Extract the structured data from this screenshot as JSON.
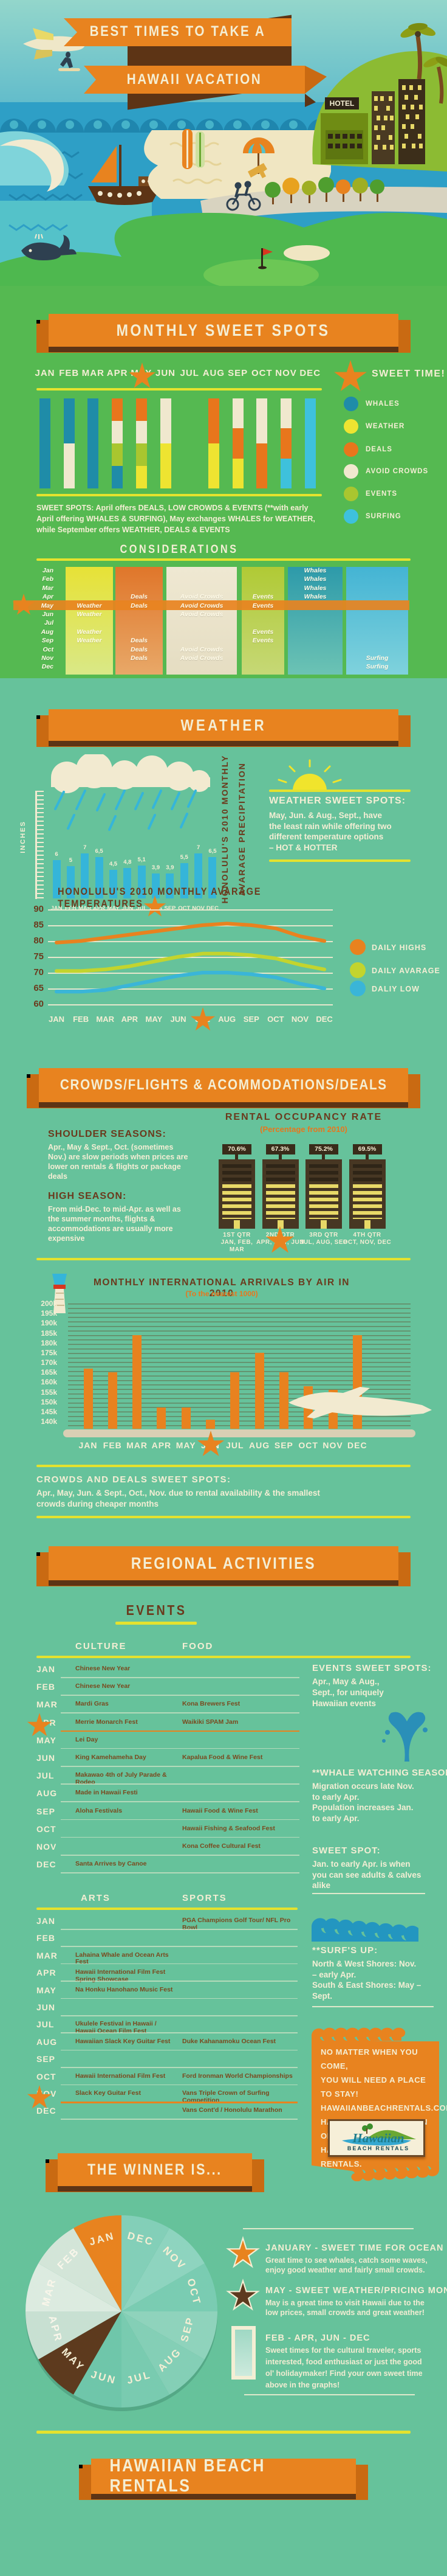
{
  "hero": {
    "title_line1": "BEST TIMES TO TAKE A",
    "title_line2": "HAWAII VACATION",
    "hotel_sign": "HOTEL"
  },
  "months_upper": [
    "JAN",
    "FEB",
    "MAR",
    "APR",
    "MAY",
    "JUN",
    "JUL",
    "AUG",
    "SEP",
    "OCT",
    "NOV",
    "DEC"
  ],
  "months_title": [
    "Jan",
    "Feb",
    "Mar",
    "Apr",
    "May",
    "Jun",
    "Jul",
    "Aug",
    "Sep",
    "Oct",
    "Nov",
    "Dec"
  ],
  "sweet_spots": {
    "ribbon": "MONTHLY SWEET SPOTS",
    "sweet_time": "SWEET TIME!",
    "starred_month": "MAY",
    "legend": [
      {
        "key": "whales",
        "label": "WHALES",
        "color": "#1f8ca8"
      },
      {
        "key": "weather",
        "label": "WEATHER",
        "color": "#eee431"
      },
      {
        "key": "deals",
        "label": "DEALS",
        "color": "#e8761c"
      },
      {
        "key": "avoid",
        "label": "AVOID CROWDS",
        "color": "#f0e8ce"
      },
      {
        "key": "events",
        "label": "EVENTS",
        "color": "#a9c62f"
      },
      {
        "key": "surfing",
        "label": "SURFING",
        "color": "#3ec1dc"
      }
    ],
    "note": "SWEET SPOTS: April offers DEALS, LOW CROWDS & EVENTS (**with early April offering WHALES & SURFING), May exchanges WHALES for WEATHER, while September offers WEATHER, DEALS & EVENTS"
  },
  "considerations": {
    "heading": "CONSIDERATIONS",
    "starred_month": "May"
  },
  "weather": {
    "ribbon": "WEATHER",
    "precip_ylabel": "INCHES",
    "precip_title_line1": "HONOLULU'S 2010 MONTHLY",
    "precip_title_line2": "AVARAGE PRECIPITATION",
    "sweet_heading": "WEATHER SWEET SPOTS:",
    "sweet_lines": [
      "May, Jun. & Aug., Sept., have",
      "the least rain while offering two",
      "different temperature options",
      "– HOT & HOTTER"
    ],
    "temps_title": "HONOLULU'S 2010 MONTHLY AVARAGE TEMPERATURES"
  },
  "crowds": {
    "ribbon": "CROWDS/FLIGHTS & ACOMMODATIONS/DEALS",
    "occupancy_title": "RENTAL OCCUPANCY RATE",
    "occupancy_sub": "(Percentage from 2010)",
    "shoulder_heading": "SHOULDER SEASONS:",
    "shoulder_text": "Apr., May & Sept., Oct. (sometimes Nov.) are slow periods when prices are lower on rentals & flights or package deals",
    "high_heading": "HIGH SEASON:",
    "high_text": "From mid-Dec. to mid-Apr. as well as the summer months, flights & accommodations are usually more expensive",
    "arrivals_title": "MONTHLY INTERNATIONAL ARRIVALS BY AIR IN 2010",
    "arrivals_sub": "(To the nearest 1000)",
    "sweet_heading": "CROWDS AND DEALS SWEET SPOTS:",
    "sweet_text": "Apr., May, Jun. & Sept., Oct., Nov. due to rental availability & the smallest crowds during cheaper months"
  },
  "regional": {
    "ribbon": "REGIONAL ACTIVITIES",
    "events_heading": "EVENTS",
    "culture_header": "CULTURE",
    "food_header": "FOOD",
    "arts_header": "ARTS",
    "sports_header": "SPORTS",
    "events_sweet_heading": "EVENTS SWEET SPOTS:",
    "events_sweet_lines": [
      "Apr., May & Aug.,",
      "Sept., for uniquely",
      "Hawaiian events"
    ],
    "whale_heading": "**WHALE WATCHING SEASON:",
    "whale_lines": [
      "Migration occurs late Nov.",
      "to early Apr.",
      "Population increases Jan.",
      "to early Apr."
    ],
    "whale_sweet_heading": "SWEET SPOT:",
    "whale_sweet_lines": [
      "Jan. to early Apr. is when",
      "you can see adults & calves",
      "alike"
    ],
    "surf_heading": "**SURF'S UP:",
    "surf_lines": [
      "North & West Shores: Nov.",
      "– early Apr.",
      "South & East Shores: May –",
      "Sept."
    ],
    "cta_lines": [
      "NO MATTER WHEN YOU COME,",
      "YOU WILL NEED A PLACE TO STAY!",
      "HAWAIIANBEACHRENTALS.COM",
      "HAS A GREAT SELECTION OF",
      "HAWAII VACATION RENTALS."
    ],
    "logo_script": "Hawaiian",
    "logo_sub": "BEACH RENTALS"
  },
  "winner": {
    "ribbon": "THE WINNER IS...",
    "blocks": [
      {
        "icon": "star",
        "icon_color": "#e8831f",
        "heading": "JANUARY - SWEET TIME FOR OCEAN LOVERS!",
        "lines": [
          "Great time to see whales, catch some waves,",
          "enjoy good weather and fairly small crowds."
        ]
      },
      {
        "icon": "star",
        "icon_color": "#5d3a1e",
        "heading": "MAY - SWEET WEATHER/PRICING MONTH!",
        "lines": [
          "May is a great time to visit Hawaii due to the",
          "low prices, small crowds and great weather!"
        ]
      },
      {
        "icon": "rect",
        "icon_color": "#bfe3d2",
        "heading": "FEB - APR, JUN - DEC",
        "lines": [
          "Sweet times for the cultural traveler, sports",
          "interested, food enthusiast or just the good",
          "ol' holidaymaker! Find your own sweet time",
          "above in the graphs!"
        ]
      }
    ]
  },
  "footer_ribbon": "HAWAIIAN BEACH RENTALS",
  "chart_data": [
    {
      "id": "monthly_sweet_spots",
      "type": "bar",
      "stacked": true,
      "title": "MONTHLY SWEET SPOTS",
      "categories": [
        "JAN",
        "FEB",
        "MAR",
        "APR",
        "MAY",
        "JUN",
        "JUL",
        "AUG",
        "SEP",
        "OCT",
        "NOV",
        "DEC"
      ],
      "stacks": [
        [
          "whales"
        ],
        [
          "whales",
          "avoid"
        ],
        [
          "whales"
        ],
        [
          "deals",
          "avoid",
          "events",
          "whales"
        ],
        [
          "deals",
          "avoid",
          "events",
          "weather"
        ],
        [
          "avoid",
          "weather"
        ],
        [],
        [
          "deals",
          "weather"
        ],
        [
          "avoid",
          "deals",
          "weather"
        ],
        [
          "avoid",
          "deals"
        ],
        [
          "avoid",
          "deals",
          "surfing"
        ],
        [
          "surfing"
        ]
      ],
      "legend": [
        "WHALES",
        "WEATHER",
        "DEALS",
        "AVOID CROWDS",
        "EVENTS",
        "SURFING"
      ],
      "starred": "MAY"
    },
    {
      "id": "considerations",
      "type": "table",
      "columns": [
        {
          "key": "weather",
          "label": "Weather"
        },
        {
          "key": "deals",
          "label": "Deals"
        },
        {
          "key": "avoid",
          "label": "Avoid Crowds"
        },
        {
          "key": "events",
          "label": "Events"
        },
        {
          "key": "whales",
          "label": "Whales"
        },
        {
          "key": "surfing",
          "label": "Surfing"
        }
      ],
      "rows": [
        {
          "month": "Jan",
          "cells": {
            "whales": "Whales"
          }
        },
        {
          "month": "Feb",
          "cells": {
            "whales": "Whales"
          }
        },
        {
          "month": "Mar",
          "cells": {
            "whales": "Whales"
          }
        },
        {
          "month": "Apr",
          "cells": {
            "deals": "Deals",
            "avoid": "Avoid Crowds",
            "events": "Events",
            "whales": "Whales"
          }
        },
        {
          "month": "May",
          "cells": {
            "weather": "Weather",
            "deals": "Deals",
            "avoid": "Avoid Crowds",
            "events": "Events"
          },
          "starred": true
        },
        {
          "month": "Jun",
          "cells": {
            "weather": "Weather",
            "avoid": "Avoid Crowds"
          }
        },
        {
          "month": "Jul",
          "cells": {}
        },
        {
          "month": "Aug",
          "cells": {
            "weather": "Weather",
            "events": "Events"
          }
        },
        {
          "month": "Sep",
          "cells": {
            "weather": "Weather",
            "deals": "Deals",
            "events": "Events"
          }
        },
        {
          "month": "Oct",
          "cells": {
            "deals": "Deals",
            "avoid": "Avoid Crowds"
          }
        },
        {
          "month": "Nov",
          "cells": {
            "deals": "Deals",
            "avoid": "Avoid Crowds",
            "surfing": "Surfing"
          }
        },
        {
          "month": "Dec",
          "cells": {
            "surfing": "Surfing"
          }
        }
      ]
    },
    {
      "id": "precipitation",
      "type": "bar",
      "title": "HONOLULU'S 2010 MONTHLY AVARAGE PRECIPITATION",
      "ylabel": "INCHES",
      "categories": [
        "JAN",
        "FEB",
        "MAR",
        "APR",
        "MAY",
        "JUN",
        "JUL",
        "AUG",
        "SEP",
        "OCT",
        "NOV",
        "DEC"
      ],
      "values": [
        6,
        5,
        7,
        6.5,
        4.5,
        4.8,
        5.1,
        3.9,
        3.9,
        5.5,
        7,
        6.5
      ],
      "starred": "AUG"
    },
    {
      "id": "temperatures",
      "type": "line",
      "title": "HONOLULU'S 2010 MONTHLY AVARAGE TEMPERATURES",
      "categories": [
        "JAN",
        "FEB",
        "MAR",
        "APR",
        "MAY",
        "JUN",
        "JUL",
        "AUG",
        "SEP",
        "OCT",
        "NOV",
        "DEC"
      ],
      "series": [
        {
          "name": "DAILY HIGHS",
          "color": "#e8821f",
          "values": [
            79.5,
            80,
            81,
            82,
            83,
            84,
            85,
            85.5,
            85,
            84,
            81.5,
            80
          ]
        },
        {
          "name": "DAILY AVARAGE",
          "color": "#c3d42e",
          "values": [
            70.5,
            70.5,
            71,
            72,
            73.5,
            75,
            76,
            76,
            75.5,
            74.5,
            72.5,
            71
          ]
        },
        {
          "name": "DALIY LOW",
          "color": "#3ab5d8",
          "values": [
            64,
            64,
            64.5,
            66,
            67.5,
            69,
            70,
            70,
            69.5,
            68.5,
            66.5,
            65
          ]
        }
      ],
      "ylim": [
        60,
        90
      ],
      "yticks": [
        90,
        85,
        80,
        75,
        70,
        65,
        60
      ],
      "grid": true,
      "legend_position": "right",
      "starred": "JUL"
    },
    {
      "id": "occupancy",
      "type": "bar",
      "title": "RENTAL OCCUPANCY RATE",
      "subtitle": "(Percentage from 2010)",
      "categories": [
        "1ST QTR",
        "2ND QTR",
        "3RD QTR",
        "4TH QTR"
      ],
      "category_months": [
        "JAN, FEB, MAR",
        "APR, MAY, JUN",
        "JUL, AUG, SEP",
        "OCT, NOV, DEC"
      ],
      "values": [
        70.6,
        67.3,
        75.2,
        69.5
      ],
      "starred": "2ND QTR"
    },
    {
      "id": "arrivals",
      "type": "bar",
      "title": "MONTHLY INTERNATIONAL ARRIVALS BY AIR IN 2010",
      "subtitle": "(To the nearest 1000)",
      "categories": [
        "JAN",
        "FEB",
        "MAR",
        "APR",
        "MAY",
        "JUN",
        "JUL",
        "AUG",
        "SEP",
        "OCT",
        "NOV",
        "DEC"
      ],
      "values_thousands": [
        167,
        165,
        184,
        147,
        147,
        141,
        165,
        175,
        165,
        158,
        156,
        184
      ],
      "yticks": [
        "200k",
        "195k",
        "190k",
        "185k",
        "180k",
        "175k",
        "170k",
        "165k",
        "160k",
        "155k",
        "150k",
        "145k",
        "140k"
      ],
      "ylim_thousands": [
        137,
        200
      ],
      "starred": "JUN"
    },
    {
      "id": "events_culture_food",
      "type": "table",
      "columns": [
        "CULTURE",
        "FOOD"
      ],
      "starred": "APR",
      "rows": [
        {
          "month": "JAN",
          "culture": "Chinese New Year",
          "food": ""
        },
        {
          "month": "FEB",
          "culture": "Chinese New Year",
          "food": ""
        },
        {
          "month": "MAR",
          "culture": "Mardi Gras",
          "food": "Kona Brewers Fest"
        },
        {
          "month": "APR",
          "culture": "Merrie Monarch Fest",
          "food": "Waikiki SPAM Jam",
          "starred": true
        },
        {
          "month": "MAY",
          "culture": "Lei Day",
          "food": ""
        },
        {
          "month": "JUN",
          "culture": "King Kamehameha Day",
          "food": "Kapalua Food & Wine Fest"
        },
        {
          "month": "JUL",
          "culture": "Makawao 4th of July Parade & Rodeo",
          "food": ""
        },
        {
          "month": "AUG",
          "culture": "Made in Hawaii Festi",
          "food": ""
        },
        {
          "month": "SEP",
          "culture": "Aloha Festivals",
          "food": "Hawaii Food & Wine Fest"
        },
        {
          "month": "OCT",
          "culture": "",
          "food": "Hawaii Fishing & Seafood Fest"
        },
        {
          "month": "NOV",
          "culture": "",
          "food": "Kona Coffee Cultural Fest"
        },
        {
          "month": "DEC",
          "culture": "Santa Arrives by Canoe",
          "food": ""
        }
      ]
    },
    {
      "id": "events_arts_sports",
      "type": "table",
      "columns": [
        "ARTS",
        "SPORTS"
      ],
      "starred": "NOV",
      "rows": [
        {
          "month": "JAN",
          "arts": "",
          "sports": "PGA Champions Golf Tour/ NFL Pro Bowl"
        },
        {
          "month": "FEB",
          "arts": "",
          "sports": ""
        },
        {
          "month": "MAR",
          "arts": "Lahaina Whale and Ocean Arts Fest",
          "sports": ""
        },
        {
          "month": "APR",
          "arts": "Hawaii International Film Fest Spring Showcase",
          "sports": ""
        },
        {
          "month": "MAY",
          "arts": "Na Honku Hanohano Music Fest",
          "sports": ""
        },
        {
          "month": "JUN",
          "arts": "",
          "sports": ""
        },
        {
          "month": "JUL",
          "arts": "Ukulele Festival in Hawaii / Hawaii Ocean Film Fest",
          "sports": ""
        },
        {
          "month": "AUG",
          "arts": "Hawaiian Slack Key Guitar Fest",
          "sports": "Duke Kahanamoku Ocean Fest"
        },
        {
          "month": "SEP",
          "arts": "",
          "sports": ""
        },
        {
          "month": "OCT",
          "arts": "Hawaii International Film Fest",
          "sports": "Ford Ironman World Championships"
        },
        {
          "month": "NOV",
          "arts": "Slack Key Guitar Fest",
          "sports": "Vans Triple Crown of Surfing Competition",
          "starred": true
        },
        {
          "month": "DEC",
          "arts": "",
          "sports": "Vans Cont'd / Honolulu Marathon"
        }
      ]
    },
    {
      "id": "winner_wheel",
      "type": "pie",
      "equal_slices": true,
      "slices": [
        {
          "label": "JAN",
          "color": "#e8831f"
        },
        {
          "label": "FEB",
          "color": "#d3e5d8"
        },
        {
          "label": "MAR",
          "color": "#dcebe0"
        },
        {
          "label": "APR",
          "color": "#c8e0d2"
        },
        {
          "label": "MAY",
          "color": "#5d3a1e"
        },
        {
          "label": "JUN",
          "color": "#6fc6aa"
        },
        {
          "label": "JUL",
          "color": "#79cbb0"
        },
        {
          "label": "AUG",
          "color": "#84cfb6"
        },
        {
          "label": "SEP",
          "color": "#8fd3bc"
        },
        {
          "label": "OCT",
          "color": "#7accb2"
        },
        {
          "label": "NOV",
          "color": "#8ed4bf"
        },
        {
          "label": "DEC",
          "color": "#83cfb8"
        }
      ]
    }
  ]
}
